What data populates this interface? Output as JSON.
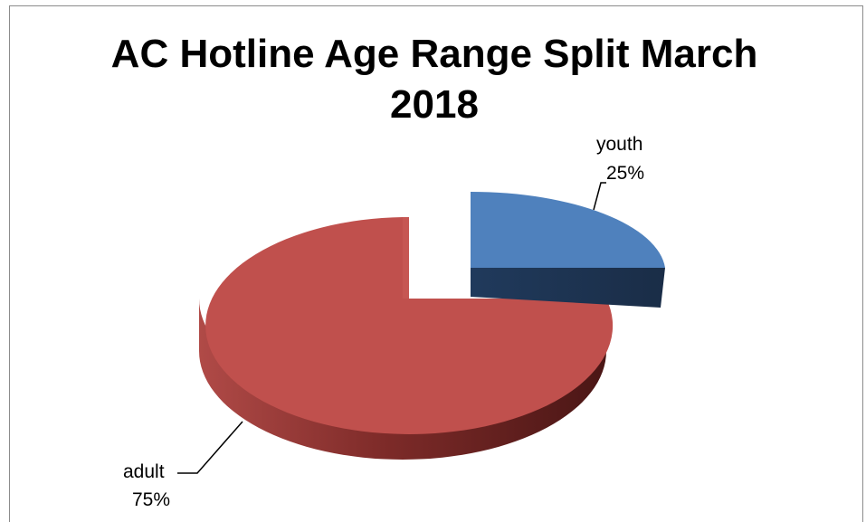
{
  "chart_data": {
    "type": "pie",
    "style": "3d-exploded",
    "title_line1": "AC Hotline Age Range Split March",
    "title_line2": "2018",
    "categories": [
      "youth",
      "adult"
    ],
    "values": [
      25,
      75
    ],
    "data_labels": [
      {
        "category": "youth",
        "percent": "25%"
      },
      {
        "category": "adult",
        "percent": "75%"
      }
    ],
    "colors": {
      "youth_top": "#4f81bd",
      "youth_side": "#1f3553",
      "adult_top": "#c0504d",
      "adult_side": "#8b2e2c",
      "leader_line": "#000000"
    }
  }
}
